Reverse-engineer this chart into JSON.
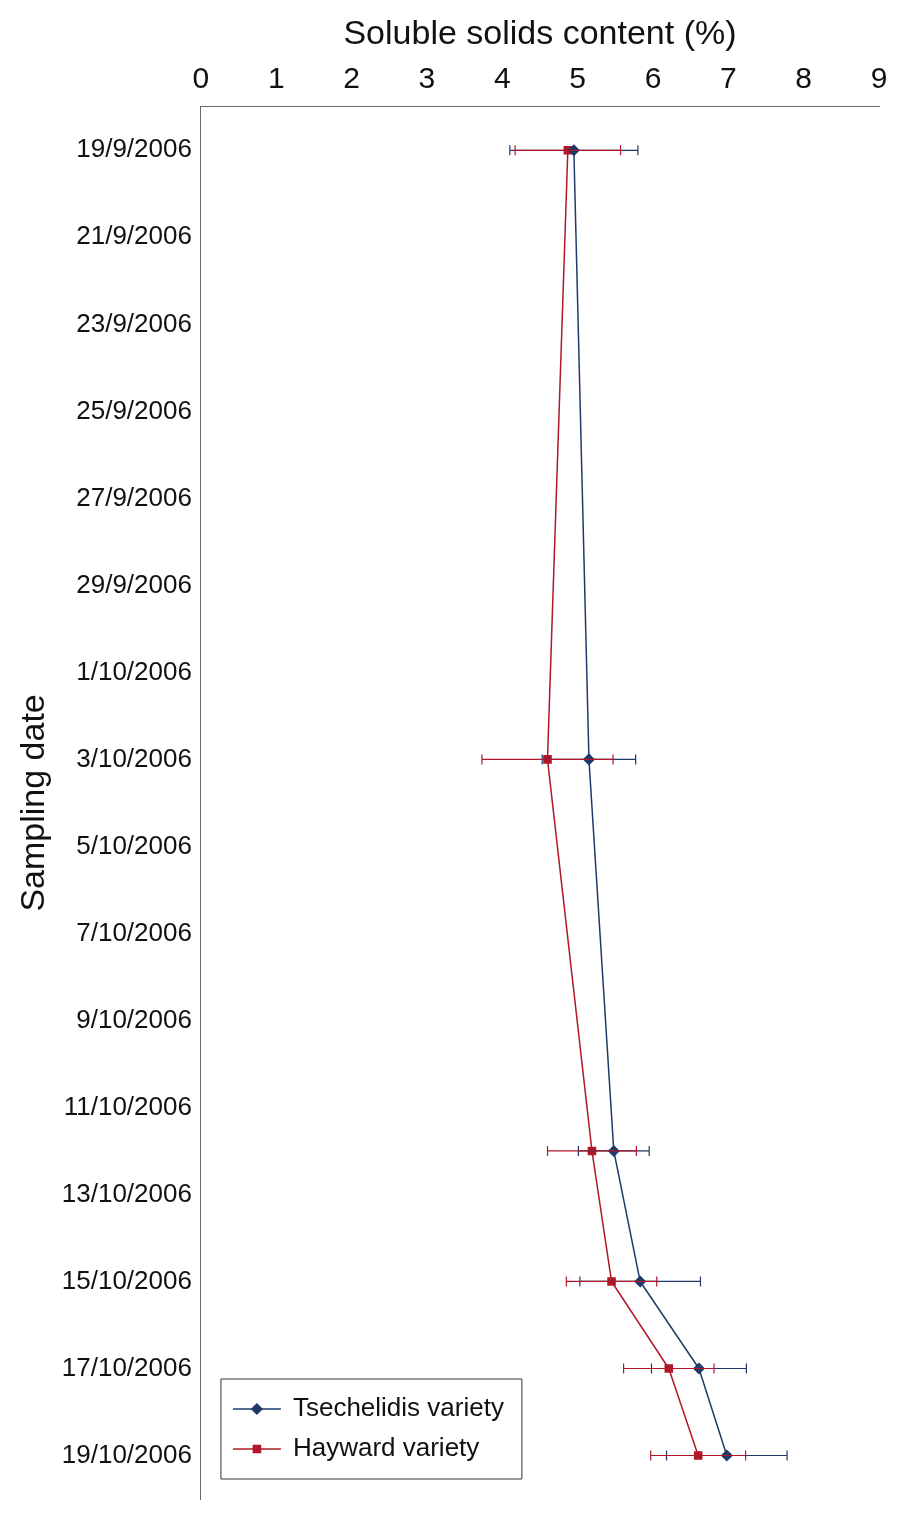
{
  "chart_data": {
    "type": "line",
    "xlabel": "Soluble solids content (%)",
    "ylabel": "Sampling date",
    "orientation": "horizontal",
    "x": [
      "2006-09-19",
      "2006-10-03",
      "2006-10-12",
      "2006-10-15",
      "2006-10-17",
      "2006-10-19"
    ],
    "series": [
      {
        "name": "Tsechelidis variety",
        "color": "#1f3a68",
        "marker": "diamond",
        "values": [
          4.95,
          5.15,
          5.48,
          5.83,
          6.61,
          6.98
        ],
        "errors": [
          0.85,
          0.62,
          0.47,
          0.8,
          0.63,
          0.8
        ]
      },
      {
        "name": "Hayward variety",
        "color": "#b0182a",
        "marker": "square",
        "values": [
          4.87,
          4.6,
          5.19,
          5.45,
          6.21,
          6.6
        ],
        "errors": [
          0.7,
          0.87,
          0.59,
          0.6,
          0.6,
          0.63
        ]
      }
    ],
    "xlim": [
      0,
      9
    ],
    "xticks": [
      0,
      1,
      2,
      3,
      4,
      5,
      6,
      7,
      8,
      9
    ],
    "ylim": [
      "2006-10-20",
      "2006-09-18"
    ],
    "yticks": [
      {
        "value": "2006-09-19",
        "label": "19/9/2006"
      },
      {
        "value": "2006-09-21",
        "label": "21/9/2006"
      },
      {
        "value": "2006-09-23",
        "label": "23/9/2006"
      },
      {
        "value": "2006-09-25",
        "label": "25/9/2006"
      },
      {
        "value": "2006-09-27",
        "label": "27/9/2006"
      },
      {
        "value": "2006-09-29",
        "label": "29/9/2006"
      },
      {
        "value": "2006-10-01",
        "label": "1/10/2006"
      },
      {
        "value": "2006-10-03",
        "label": "3/10/2006"
      },
      {
        "value": "2006-10-05",
        "label": "5/10/2006"
      },
      {
        "value": "2006-10-07",
        "label": "7/10/2006"
      },
      {
        "value": "2006-10-09",
        "label": "9/10/2006"
      },
      {
        "value": "2006-10-11",
        "label": "11/10/2006"
      },
      {
        "value": "2006-10-13",
        "label": "13/10/2006"
      },
      {
        "value": "2006-10-15",
        "label": "15/10/2006"
      },
      {
        "value": "2006-10-17",
        "label": "17/10/2006"
      },
      {
        "value": "2006-10-19",
        "label": "19/10/2006"
      }
    ],
    "grid": false,
    "legend": "bottom left",
    "line_style": "solid"
  }
}
